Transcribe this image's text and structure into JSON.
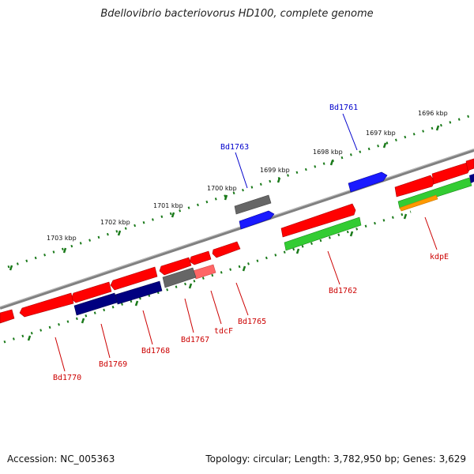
{
  "title": "Bdellovibrio bacteriovorus HD100, complete genome",
  "footer": {
    "accession": "Accession: NC_005363",
    "stats": "Topology: circular; Length: 3,782,950 bp; Genes: 3,629"
  },
  "ticks": [
    {
      "label": "1696 kbp"
    },
    {
      "label": "1697 kbp"
    },
    {
      "label": "1698 kbp"
    },
    {
      "label": "1699 kbp"
    },
    {
      "label": "1700 kbp"
    },
    {
      "label": "1701 kbp"
    },
    {
      "label": "1702 kbp"
    },
    {
      "label": "1703 kbp"
    }
  ],
  "genes": [
    {
      "name": "Bd1761",
      "strand": "+",
      "color": "#1a1aff"
    },
    {
      "name": "Bd1763",
      "strand": "+",
      "color": "#1a1aff"
    },
    {
      "name": "Bd1762",
      "strand": "-",
      "color": "#33cc33"
    },
    {
      "name": "kdpE",
      "strand": "-",
      "color": "#ff9900"
    },
    {
      "name": "Bd1765",
      "strand": "-",
      "color": "#ff0000"
    },
    {
      "name": "tdcF",
      "strand": "-",
      "color": "#ff6666"
    },
    {
      "name": "Bd1767",
      "strand": "-",
      "color": "#666666"
    },
    {
      "name": "Bd1768",
      "strand": "-",
      "color": "#000080"
    },
    {
      "name": "Bd1769",
      "strand": "-",
      "color": "#000080"
    },
    {
      "name": "Bd1770",
      "strand": "-",
      "color": "#ff0000"
    }
  ],
  "colors": {
    "backbone": "#808080",
    "tick": "#1a7a1a",
    "forward_label": "#0000cc",
    "reverse_label": "#cc0000"
  }
}
